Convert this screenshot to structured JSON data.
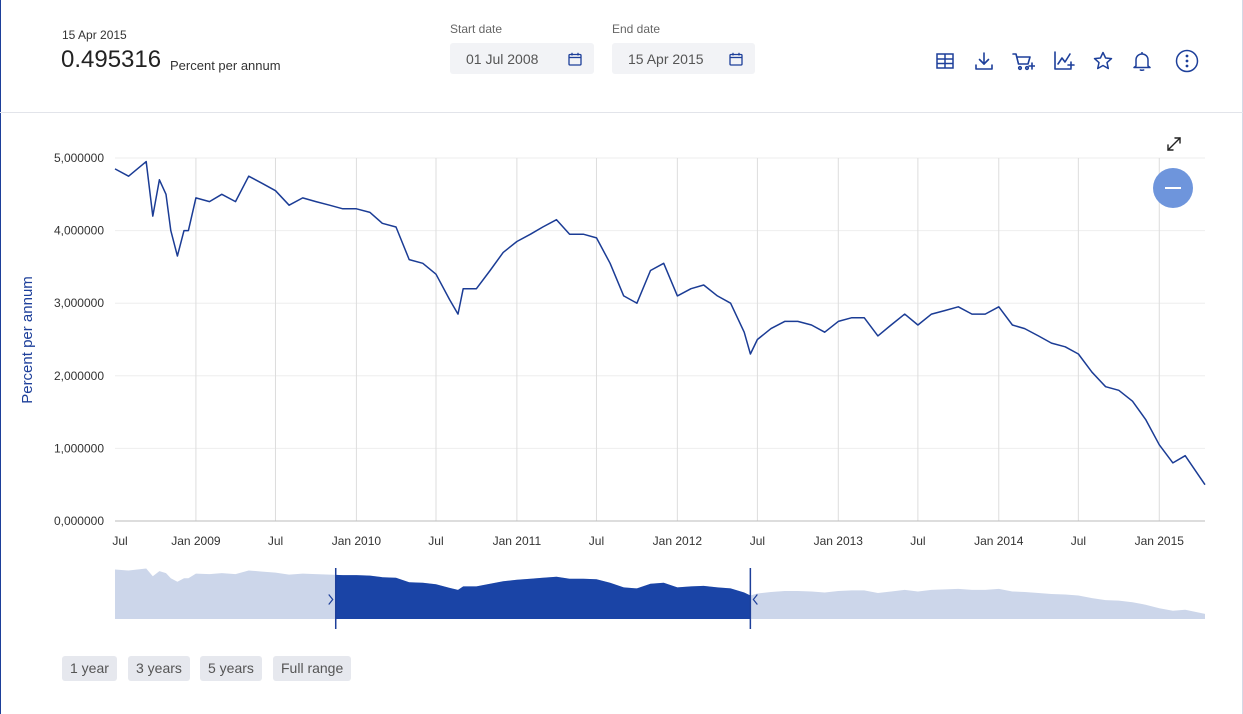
{
  "header": {
    "observation_date": "15 Apr 2015",
    "observation_value": "0.495316",
    "observation_unit": "Percent per annum",
    "start_date_label": "Start date",
    "start_date_value": "01 Jul 2008",
    "end_date_label": "End date",
    "end_date_value": "15 Apr 2015"
  },
  "toolbar": {
    "icons": [
      "table-icon",
      "download-icon",
      "cart-add-icon",
      "chart-add-icon",
      "star-icon",
      "bell-icon",
      "more-options-icon"
    ]
  },
  "range_buttons": [
    "1 year",
    "3 years",
    "5 years",
    "Full range"
  ],
  "colors": {
    "line": "#1b3c95",
    "navigator_selected": "#1a44a6",
    "navigator_unselected": "#ccd6ea",
    "accent_button": "#6e95dc"
  },
  "chart_data": {
    "type": "line",
    "ylabel": "Percent per annum",
    "ylim": [
      0,
      5
    ],
    "y_ticks": [
      "0,000000",
      "1,000000",
      "2,000000",
      "3,000000",
      "4,000000",
      "5,000000"
    ],
    "x_range": [
      "2008-07-01",
      "2015-04-15"
    ],
    "x_ticks": [
      {
        "date": "2008-07-01",
        "label": "Jul"
      },
      {
        "date": "2009-01-01",
        "label": "Jan 2009"
      },
      {
        "date": "2009-07-01",
        "label": "Jul"
      },
      {
        "date": "2010-01-01",
        "label": "Jan 2010"
      },
      {
        "date": "2010-07-01",
        "label": "Jul"
      },
      {
        "date": "2011-01-01",
        "label": "Jan 2011"
      },
      {
        "date": "2011-07-01",
        "label": "Jul"
      },
      {
        "date": "2012-01-01",
        "label": "Jan 2012"
      },
      {
        "date": "2012-07-01",
        "label": "Jul"
      },
      {
        "date": "2013-01-01",
        "label": "Jan 2013"
      },
      {
        "date": "2013-07-01",
        "label": "Jul"
      },
      {
        "date": "2014-01-01",
        "label": "Jan 2014"
      },
      {
        "date": "2014-07-01",
        "label": "Jul"
      },
      {
        "date": "2015-01-01",
        "label": "Jan 2015"
      }
    ],
    "grid": true,
    "series": [
      {
        "x": [
          "2008-07-01",
          "2008-08-01",
          "2008-09-10",
          "2008-09-25",
          "2008-10-10",
          "2008-10-25",
          "2008-11-05",
          "2008-11-20",
          "2008-12-05",
          "2008-12-15",
          "2009-01-01",
          "2009-02-01",
          "2009-03-01",
          "2009-04-01",
          "2009-05-01",
          "2009-06-01",
          "2009-07-01",
          "2009-08-01",
          "2009-09-01",
          "2009-10-01",
          "2009-11-01",
          "2009-12-01",
          "2010-01-01",
          "2010-02-01",
          "2010-03-01",
          "2010-04-01",
          "2010-05-01",
          "2010-06-01",
          "2010-07-01",
          "2010-08-01",
          "2010-08-20",
          "2010-09-01",
          "2010-10-01",
          "2010-11-01",
          "2010-12-01",
          "2011-01-01",
          "2011-02-01",
          "2011-03-01",
          "2011-04-01",
          "2011-05-01",
          "2011-06-01",
          "2011-07-01",
          "2011-08-01",
          "2011-09-01",
          "2011-10-01",
          "2011-11-01",
          "2011-12-01",
          "2012-01-01",
          "2012-02-01",
          "2012-03-01",
          "2012-04-01",
          "2012-05-01",
          "2012-06-01",
          "2012-06-15",
          "2012-07-01",
          "2012-08-01",
          "2012-09-01",
          "2012-10-01",
          "2012-11-01",
          "2012-12-01",
          "2013-01-01",
          "2013-02-01",
          "2013-03-01",
          "2013-04-01",
          "2013-05-01",
          "2013-06-01",
          "2013-07-01",
          "2013-08-01",
          "2013-09-01",
          "2013-10-01",
          "2013-11-01",
          "2013-12-01",
          "2014-01-01",
          "2014-02-01",
          "2014-03-01",
          "2014-04-01",
          "2014-05-01",
          "2014-06-01",
          "2014-07-01",
          "2014-08-01",
          "2014-09-01",
          "2014-10-01",
          "2014-11-01",
          "2014-12-01",
          "2015-01-01",
          "2015-02-01",
          "2015-03-01",
          "2015-04-15"
        ],
        "values": [
          4.85,
          4.75,
          4.95,
          4.2,
          4.7,
          4.5,
          4.0,
          3.65,
          4.0,
          4.0,
          4.45,
          4.4,
          4.5,
          4.4,
          4.75,
          4.65,
          4.55,
          4.35,
          4.45,
          4.4,
          4.35,
          4.3,
          4.3,
          4.25,
          4.1,
          4.05,
          3.6,
          3.55,
          3.4,
          3.05,
          2.85,
          3.2,
          3.2,
          3.45,
          3.7,
          3.85,
          3.95,
          4.05,
          4.15,
          3.95,
          3.95,
          3.9,
          3.55,
          3.1,
          3.0,
          3.45,
          3.55,
          3.1,
          3.2,
          3.25,
          3.1,
          3.0,
          2.6,
          2.3,
          2.5,
          2.65,
          2.75,
          2.75,
          2.7,
          2.6,
          2.75,
          2.8,
          2.8,
          2.55,
          2.7,
          2.85,
          2.7,
          2.85,
          2.9,
          2.95,
          2.85,
          2.85,
          2.95,
          2.7,
          2.65,
          2.55,
          2.45,
          2.4,
          2.3,
          2.05,
          1.85,
          1.8,
          1.65,
          1.4,
          1.05,
          0.8,
          0.9,
          0.5
        ]
      }
    ],
    "navigator": {
      "selected_range": [
        "2009-11-15",
        "2012-06-15"
      ]
    }
  }
}
